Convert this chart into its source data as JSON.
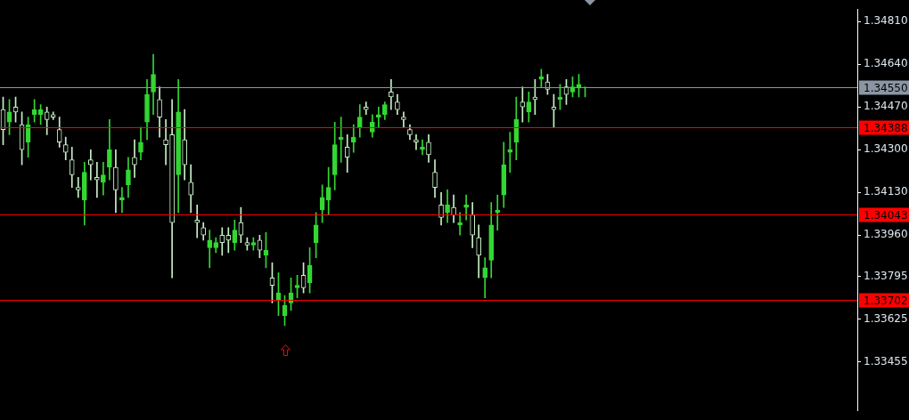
{
  "chart_data": {
    "type": "candlestick",
    "tick_labels": "y",
    "colors": [
      "#c8f0c8",
      "#32d832",
      "#c8f0c8",
      "#c8f0c8",
      "#32d832",
      "#32d832",
      "#32d832",
      "#c8f0c8",
      "#c8f0c8",
      "#c8f0c8",
      "#c8f0c8",
      "#c8f0c8",
      "#c8f0c8",
      "#32d832",
      "#c8f0c8",
      "#c8f0c8",
      "#32d832",
      "#32d832",
      "#c8f0c8",
      "#32d832",
      "#32d832",
      "#c8f0c8",
      "#32d832",
      "#32d832",
      "#32d832",
      "#c8f0c8",
      "#c8f0c8",
      "#c8f0c8",
      "#32d832",
      "#c8f0c8",
      "#c8f0c8",
      "#c8f0c8",
      "#c8f0c8",
      "#32d832",
      "#32d832",
      "#c8f0c8",
      "#c8f0c8",
      "#32d832",
      "#c8f0c8",
      "#c8f0c8",
      "#32d832",
      "#c8f0c8",
      "#32d832",
      "#c8f0c8",
      "#32d832",
      "#32d832",
      "#32d832",
      "#32d832",
      "#c8f0c8",
      "#32d832",
      "#32d832",
      "#32d832",
      "#32d832",
      "#32d832",
      "#32d832",
      "#c8f0c8",
      "#32d832",
      "#32d832",
      "#c8f0c8",
      "#32d832",
      "#32d832",
      "#32d832",
      "#c8f0c8",
      "#c8f0c8",
      "#c8f0c8",
      "#c8f0c8",
      "#c8f0c8",
      "#32d832",
      "#c8f0c8",
      "#c8f0c8",
      "#c8f0c8",
      "#32d832",
      "#c8f0c8",
      "#32d832",
      "#32d832",
      "#c8f0c8",
      "#c8f0c8",
      "#32d832",
      "#32d832",
      "#32d832",
      "#32d832",
      "#32d832",
      "#32d832",
      "#c8f0c8",
      "#32d832",
      "#c8f0c8",
      "#32d832",
      "#c8f0c8",
      "#c8f0c8",
      "#32d832",
      "#c8f0c8",
      "#32d832",
      "#32d832",
      "#32d832",
      null,
      null,
      null,
      null,
      null,
      null,
      null,
      null,
      null,
      null,
      null,
      null,
      null,
      null,
      null,
      null,
      null,
      null,
      null,
      null,
      null,
      null,
      null,
      null,
      null,
      null,
      null,
      null,
      null,
      null,
      null,
      null,
      null,
      null,
      null,
      null,
      null,
      null,
      null,
      null,
      null,
      null,
      null
    ],
    "categories": [
      null,
      null,
      null,
      null,
      null,
      null,
      null,
      null,
      null,
      null,
      null,
      null,
      null,
      null,
      null,
      null,
      null,
      null,
      null,
      null,
      null,
      null,
      null,
      null,
      null,
      null,
      null,
      null,
      null,
      null,
      null,
      null,
      null,
      null,
      null,
      null,
      null,
      null,
      null,
      null,
      null,
      null,
      null,
      null,
      null,
      null,
      null,
      null,
      null,
      null,
      null,
      null,
      null,
      null,
      null,
      null,
      null,
      null,
      null,
      null,
      null,
      null,
      null,
      null,
      null,
      null,
      null,
      null,
      null,
      null,
      null,
      null,
      null,
      null,
      null,
      null,
      null,
      null,
      null,
      null,
      null,
      null,
      null,
      null,
      null,
      null,
      null,
      null,
      null,
      null,
      null,
      null,
      null,
      null,
      null,
      null,
      null,
      null,
      null,
      null,
      null,
      null,
      null,
      null,
      null,
      null,
      null,
      null,
      null,
      null,
      null,
      null,
      null,
      null,
      null,
      null,
      null,
      null,
      null,
      null,
      null,
      null,
      null,
      null,
      null,
      null,
      null,
      null,
      null,
      null,
      null,
      null,
      null,
      null,
      null,
      null,
      null
    ],
    "ohlc": [
      [
        1.3446,
        1.3451,
        1.3432,
        1.3438
      ],
      [
        1.3441,
        1.345,
        1.3436,
        1.3445
      ],
      [
        1.3447,
        1.3451,
        1.3441,
        1.3445
      ],
      [
        1.344,
        1.3445,
        1.3424,
        1.343
      ],
      [
        1.3433,
        1.3443,
        1.3427,
        1.344
      ],
      [
        1.3444,
        1.345,
        1.3441,
        1.3446
      ],
      [
        1.3444,
        1.3448,
        1.344,
        1.3446
      ],
      [
        1.3445,
        1.3447,
        1.3436,
        1.3442
      ],
      [
        1.3444,
        1.3445,
        1.3442,
        1.3443
      ],
      [
        1.3438,
        1.3443,
        1.3431,
        1.3433
      ],
      [
        1.3432,
        1.3435,
        1.3426,
        1.3429
      ],
      [
        1.3426,
        1.3431,
        1.3415,
        1.342
      ],
      [
        1.3415,
        1.3419,
        1.3411,
        1.3414
      ],
      [
        1.341,
        1.3425,
        1.34,
        1.3421
      ],
      [
        1.3426,
        1.343,
        1.3418,
        1.3424
      ],
      [
        1.3419,
        1.3425,
        1.3411,
        1.3418
      ],
      [
        1.3417,
        1.3425,
        1.3412,
        1.342
      ],
      [
        1.3423,
        1.3442,
        1.3418,
        1.343
      ],
      [
        1.3423,
        1.343,
        1.3405,
        1.3414
      ],
      [
        1.341,
        1.3415,
        1.3405,
        1.3411
      ],
      [
        1.3416,
        1.3427,
        1.3411,
        1.3422
      ],
      [
        1.3427,
        1.3434,
        1.3419,
        1.3424
      ],
      [
        1.3429,
        1.3439,
        1.3426,
        1.3433
      ],
      [
        1.3441,
        1.3458,
        1.3434,
        1.3452
      ],
      [
        1.3453,
        1.3468,
        1.3444,
        1.346
      ],
      [
        1.345,
        1.3455,
        1.3435,
        1.3443
      ],
      [
        1.3434,
        1.3442,
        1.3424,
        1.3432
      ],
      [
        1.3436,
        1.345,
        1.3379,
        1.3401
      ],
      [
        1.342,
        1.3458,
        1.3405,
        1.3445
      ],
      [
        1.3434,
        1.3446,
        1.3418,
        1.3424
      ],
      [
        1.3417,
        1.3424,
        1.3405,
        1.3412
      ],
      [
        1.3402,
        1.3408,
        1.3395,
        1.3401
      ],
      [
        1.3399,
        1.3401,
        1.3394,
        1.3396
      ],
      [
        1.3391,
        1.3398,
        1.3383,
        1.3394
      ],
      [
        1.3391,
        1.3395,
        1.3389,
        1.3393
      ],
      [
        1.3396,
        1.3399,
        1.3388,
        1.3393
      ],
      [
        1.3396,
        1.3399,
        1.3389,
        1.3394
      ],
      [
        1.3393,
        1.3402,
        1.339,
        1.3398
      ],
      [
        1.3401,
        1.3407,
        1.3393,
        1.3396
      ],
      [
        1.3393,
        1.3395,
        1.339,
        1.3392
      ],
      [
        1.3392,
        1.3395,
        1.339,
        1.3393
      ],
      [
        1.3394,
        1.3396,
        1.3387,
        1.339
      ],
      [
        1.3388,
        1.3397,
        1.3383,
        1.339
      ],
      [
        1.3379,
        1.3385,
        1.3369,
        1.3376
      ],
      [
        1.337,
        1.3381,
        1.3364,
        1.3373
      ],
      [
        1.3364,
        1.3372,
        1.336,
        1.3368
      ],
      [
        1.3369,
        1.3379,
        1.3366,
        1.3373
      ],
      [
        1.3375,
        1.338,
        1.3371,
        1.3376
      ],
      [
        1.338,
        1.3385,
        1.3373,
        1.3375
      ],
      [
        1.3377,
        1.3391,
        1.3373,
        1.3384
      ],
      [
        1.3393,
        1.3405,
        1.3387,
        1.34
      ],
      [
        1.3406,
        1.3416,
        1.3401,
        1.3411
      ],
      [
        1.341,
        1.3423,
        1.3404,
        1.3415
      ],
      [
        1.342,
        1.3441,
        1.3414,
        1.3432
      ],
      [
        1.3434,
        1.3443,
        1.3425,
        1.3435
      ],
      [
        1.3431,
        1.3436,
        1.3421,
        1.3427
      ],
      [
        1.3433,
        1.344,
        1.3429,
        1.3435
      ],
      [
        1.3439,
        1.3448,
        1.3435,
        1.3443
      ],
      [
        1.3447,
        1.3449,
        1.3444,
        1.3446
      ],
      [
        1.3437,
        1.3444,
        1.3435,
        1.3441
      ],
      [
        1.3443,
        1.3447,
        1.3439,
        1.3444
      ],
      [
        1.3444,
        1.3449,
        1.3442,
        1.3448
      ],
      [
        1.3453,
        1.3458,
        1.3446,
        1.3451
      ],
      [
        1.3449,
        1.3452,
        1.3444,
        1.3446
      ],
      [
        1.3443,
        1.3445,
        1.3439,
        1.3442
      ],
      [
        1.3438,
        1.344,
        1.3434,
        1.3436
      ],
      [
        1.3434,
        1.3436,
        1.343,
        1.3433
      ],
      [
        1.343,
        1.3434,
        1.3428,
        1.3431
      ],
      [
        1.3433,
        1.3436,
        1.3425,
        1.3428
      ],
      [
        1.3421,
        1.3426,
        1.3411,
        1.3415
      ],
      [
        1.3408,
        1.3413,
        1.34,
        1.3403
      ],
      [
        1.3405,
        1.3414,
        1.3401,
        1.3408
      ],
      [
        1.3407,
        1.3412,
        1.3401,
        1.3404
      ],
      [
        1.34,
        1.3405,
        1.3396,
        1.3401
      ],
      [
        1.3407,
        1.3412,
        1.3402,
        1.3408
      ],
      [
        1.3404,
        1.3409,
        1.3391,
        1.3396
      ],
      [
        1.3395,
        1.34,
        1.3379,
        1.3388
      ],
      [
        1.3379,
        1.3387,
        1.3371,
        1.3383
      ],
      [
        1.3386,
        1.3409,
        1.3379,
        1.34
      ],
      [
        1.3405,
        1.3412,
        1.3398,
        1.3406
      ],
      [
        1.3412,
        1.3433,
        1.3407,
        1.3424
      ],
      [
        1.3429,
        1.3437,
        1.3421,
        1.343
      ],
      [
        1.3433,
        1.3451,
        1.3426,
        1.3442
      ],
      [
        1.3449,
        1.3455,
        1.3441,
        1.3447
      ],
      [
        1.3445,
        1.3453,
        1.3441,
        1.3449
      ],
      [
        1.3451,
        1.3458,
        1.3444,
        1.345
      ],
      [
        1.3458,
        1.3462,
        1.3455,
        1.3459
      ],
      [
        1.3457,
        1.346,
        1.3452,
        1.3454
      ],
      [
        1.3447,
        1.3452,
        1.3439,
        1.3446
      ],
      [
        1.345,
        1.3456,
        1.3446,
        1.3451
      ],
      [
        1.3455,
        1.3458,
        1.3448,
        1.3452
      ],
      [
        1.3453,
        1.3459,
        1.3451,
        1.3455
      ],
      [
        1.3455,
        1.346,
        1.3451,
        1.3456
      ],
      [
        1.3453,
        1.3455,
        1.3451,
        1.3453
      ],
      null,
      null,
      null,
      null,
      null,
      null,
      null,
      null,
      null,
      null,
      null,
      null,
      null,
      null,
      null,
      null,
      null,
      null,
      null,
      null,
      null,
      null,
      null,
      null,
      null,
      null,
      null,
      null,
      null,
      null,
      null,
      null,
      null,
      null,
      null,
      null,
      null,
      null,
      null,
      null,
      null,
      null,
      null
    ],
    "ylim": [
      1.3326,
      1.3486
    ],
    "yticks": [
      {
        "value": 1.3481,
        "label": "1.34810"
      },
      {
        "value": 1.3464,
        "label": "1.34640"
      },
      {
        "value": 1.3447,
        "label": "1.34470"
      },
      {
        "value": 1.343,
        "label": "1.34300"
      },
      {
        "value": 1.3413,
        "label": "1.34130"
      },
      {
        "value": 1.3396,
        "label": "1.33960"
      },
      {
        "value": 1.33795,
        "label": "1.33795"
      },
      {
        "value": 1.33625,
        "label": "1.33625"
      },
      {
        "value": 1.33455,
        "label": "1.33455"
      }
    ],
    "ref_lines": [
      {
        "axis": "y",
        "value": 1.3455,
        "label": "1.34550",
        "color": "#8a96a4"
      },
      {
        "axis": "y",
        "value": 1.34388,
        "label": "1.34388",
        "color": "#ff0000"
      },
      {
        "axis": "y",
        "value": 1.34043,
        "label": "1.34043",
        "color": "#ff0000"
      },
      {
        "axis": "y",
        "value": 1.33702,
        "label": "1.33702",
        "color": "#ff0000"
      }
    ]
  }
}
